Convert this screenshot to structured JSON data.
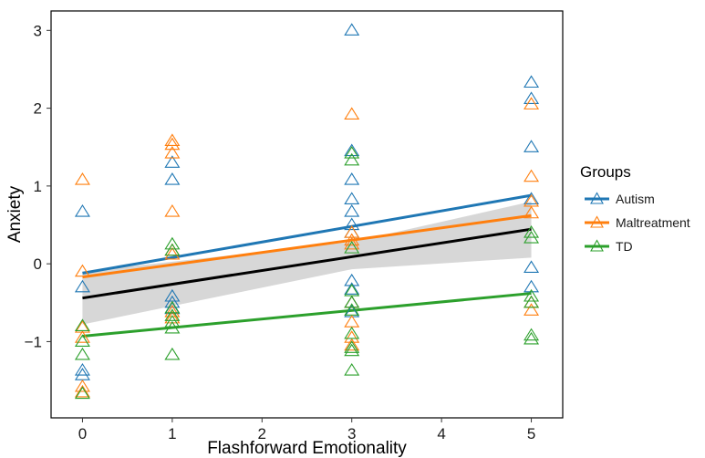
{
  "chart_data": {
    "type": "scatter",
    "title": "",
    "xlabel": "Flashforward Emotionality",
    "ylabel": "Anxiety",
    "xlim": [
      -0.35,
      5.35
    ],
    "ylim": [
      -1.98,
      3.25
    ],
    "x_ticks": [
      0,
      1,
      2,
      3,
      4,
      5
    ],
    "y_ticks": [
      -1,
      0,
      1,
      2,
      3
    ],
    "x_tick_labels": [
      "0",
      "1",
      "2",
      "3",
      "4",
      "5"
    ],
    "y_tick_labels": [
      "−1",
      "0",
      "1",
      "2",
      "3"
    ],
    "grid": false,
    "legend": {
      "title": "Groups",
      "position": "right"
    },
    "series": [
      {
        "name": "Autism",
        "color": "#1f77b4",
        "marker": "open-triangle",
        "points": [
          [
            0,
            0.67
          ],
          [
            0,
            -0.3
          ],
          [
            0,
            -1.37
          ],
          [
            0,
            -1.43
          ],
          [
            1,
            1.3
          ],
          [
            1,
            1.08
          ],
          [
            1,
            -0.42
          ],
          [
            1,
            -0.5
          ],
          [
            1,
            -0.58
          ],
          [
            3,
            3.0
          ],
          [
            3,
            1.45
          ],
          [
            3,
            1.08
          ],
          [
            3,
            0.83
          ],
          [
            3,
            0.67
          ],
          [
            3,
            0.5
          ],
          [
            3,
            0.4
          ],
          [
            3,
            -0.22
          ],
          [
            3,
            -0.33
          ],
          [
            3,
            -0.5
          ],
          [
            3,
            -0.62
          ],
          [
            5,
            2.33
          ],
          [
            5,
            2.12
          ],
          [
            5,
            1.5
          ],
          [
            5,
            0.83
          ],
          [
            5,
            -0.05
          ],
          [
            5,
            -0.3
          ]
        ],
        "fit": {
          "intercept": -0.12,
          "slope": 0.2
        }
      },
      {
        "name": "Maltreatment",
        "color": "#ff7f0e",
        "marker": "open-triangle",
        "points": [
          [
            0,
            1.08
          ],
          [
            0,
            -0.1
          ],
          [
            0,
            -0.82
          ],
          [
            0,
            -0.95
          ],
          [
            0,
            -1.58
          ],
          [
            0,
            -1.65
          ],
          [
            1,
            1.58
          ],
          [
            1,
            1.53
          ],
          [
            1,
            1.42
          ],
          [
            1,
            0.67
          ],
          [
            1,
            0.17
          ],
          [
            1,
            0.12
          ],
          [
            1,
            -0.62
          ],
          [
            1,
            -0.7
          ],
          [
            3,
            1.92
          ],
          [
            3,
            0.4
          ],
          [
            3,
            0.3
          ],
          [
            3,
            0.25
          ],
          [
            3,
            -0.5
          ],
          [
            3,
            -0.75
          ],
          [
            3,
            -0.95
          ],
          [
            3,
            -1.05
          ],
          [
            5,
            2.05
          ],
          [
            5,
            1.12
          ],
          [
            5,
            0.8
          ],
          [
            5,
            0.65
          ],
          [
            5,
            -0.5
          ],
          [
            5,
            -0.6
          ]
        ],
        "fit": {
          "intercept": -0.17,
          "slope": 0.158
        }
      },
      {
        "name": "TD",
        "color": "#2ca02c",
        "marker": "open-triangle",
        "points": [
          [
            0,
            -0.8
          ],
          [
            0,
            -1.0
          ],
          [
            0,
            -1.17
          ],
          [
            0,
            -1.67
          ],
          [
            1,
            0.25
          ],
          [
            1,
            0.17
          ],
          [
            1,
            -0.57
          ],
          [
            1,
            -0.67
          ],
          [
            1,
            -0.75
          ],
          [
            1,
            -0.83
          ],
          [
            1,
            -1.17
          ],
          [
            3,
            1.42
          ],
          [
            3,
            1.33
          ],
          [
            3,
            0.2
          ],
          [
            3,
            -0.35
          ],
          [
            3,
            -0.5
          ],
          [
            3,
            -0.6
          ],
          [
            3,
            -0.9
          ],
          [
            3,
            -1.08
          ],
          [
            3,
            -1.12
          ],
          [
            3,
            -1.37
          ],
          [
            5,
            0.4
          ],
          [
            5,
            0.33
          ],
          [
            5,
            -0.42
          ],
          [
            5,
            -0.5
          ],
          [
            5,
            -0.92
          ],
          [
            5,
            -0.97
          ]
        ],
        "fit": {
          "intercept": -0.93,
          "slope": 0.11
        }
      }
    ],
    "overall_fit": {
      "color": "#000000",
      "intercept": -0.44,
      "slope": 0.177,
      "ci_band": {
        "color": "#d3d3d3",
        "lower": [
          [
            0,
            -0.78
          ],
          [
            3,
            -0.07
          ],
          [
            5,
            0.08
          ]
        ],
        "upper": [
          [
            0,
            -0.1
          ],
          [
            3,
            0.28
          ],
          [
            5,
            0.8
          ]
        ]
      }
    }
  }
}
